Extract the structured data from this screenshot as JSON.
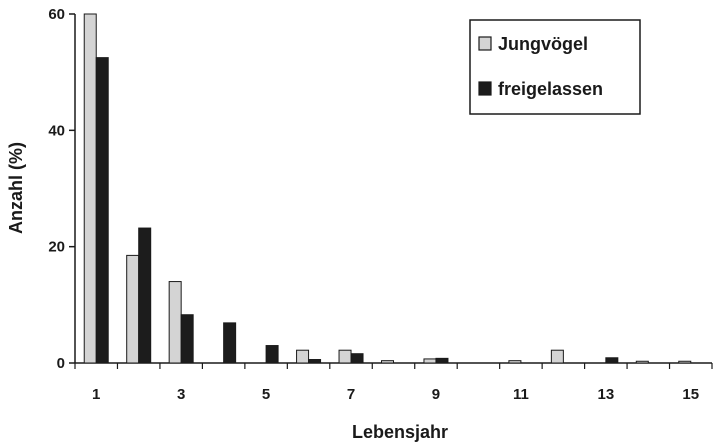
{
  "chart_data": {
    "type": "bar",
    "title": "",
    "xlabel": "Lebensjahr",
    "ylabel": "Anzahl (%)",
    "ylim": [
      0,
      60
    ],
    "yticks": [
      "0",
      "20",
      "40",
      "60"
    ],
    "categories": [
      "1",
      "2",
      "3",
      "4",
      "5",
      "6",
      "7",
      "8",
      "9",
      "10",
      "11",
      "12",
      "13",
      "14",
      "15"
    ],
    "xtick_labels": [
      "1",
      "3",
      "5",
      "7",
      "9",
      "11",
      "13",
      "15"
    ],
    "series": [
      {
        "name": "Jungvögel",
        "color": "#d4d4d4",
        "values": [
          60,
          18.5,
          14,
          0,
          0,
          2.2,
          2.2,
          0.4,
          0.7,
          0,
          0.4,
          2.2,
          0,
          0.3,
          0.3
        ]
      },
      {
        "name": "freigelassen",
        "color": "#1c1c1c",
        "values": [
          52.5,
          23.2,
          8.3,
          6.9,
          3,
          0.6,
          1.6,
          0,
          0.8,
          0,
          0,
          0,
          0.9,
          0,
          0
        ]
      }
    ],
    "legend": "top-right",
    "grid": false
  }
}
